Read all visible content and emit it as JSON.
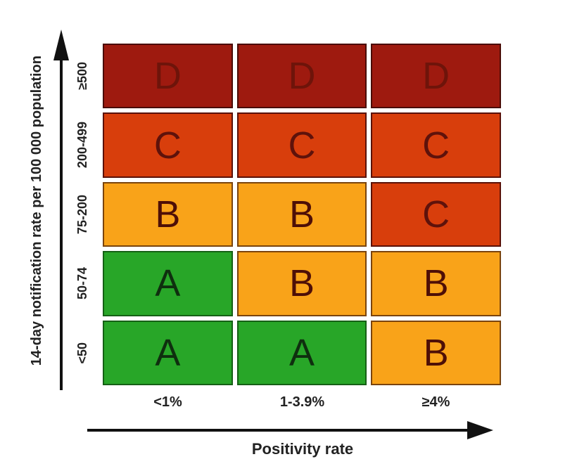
{
  "chart_data": {
    "type": "heatmap",
    "title": "",
    "xlabel": "Positivity rate",
    "ylabel": "14-day notification rate per 100 000 population",
    "x_categories": [
      "<1%",
      "1-3.9%",
      "≥4%"
    ],
    "y_categories": [
      "≥500",
      "200-499",
      "75-200",
      "50-74",
      "<50"
    ],
    "rows": [
      {
        "y_label": "≥500",
        "cells": [
          {
            "grade": "D",
            "label": "D"
          },
          {
            "grade": "D",
            "label": "D"
          },
          {
            "grade": "D",
            "label": "D"
          }
        ]
      },
      {
        "y_label": "200-499",
        "cells": [
          {
            "grade": "C",
            "label": "C"
          },
          {
            "grade": "C",
            "label": "C"
          },
          {
            "grade": "C",
            "label": "C"
          }
        ]
      },
      {
        "y_label": "75-200",
        "cells": [
          {
            "grade": "B",
            "label": "B"
          },
          {
            "grade": "B",
            "label": "B"
          },
          {
            "grade": "C",
            "label": "C"
          }
        ]
      },
      {
        "y_label": "50-74",
        "cells": [
          {
            "grade": "A",
            "label": "A"
          },
          {
            "grade": "B",
            "label": "B"
          },
          {
            "grade": "B",
            "label": "B"
          }
        ]
      },
      {
        "y_label": "<50",
        "cells": [
          {
            "grade": "A",
            "label": "A"
          },
          {
            "grade": "A",
            "label": "A"
          },
          {
            "grade": "B",
            "label": "B"
          }
        ]
      }
    ],
    "grade_colors": {
      "A": {
        "fill": "#28A628",
        "border": "#156015",
        "text": "#0F2F0F"
      },
      "B": {
        "fill": "#F9A319",
        "border": "#7A440D",
        "text": "#4E0F07"
      },
      "C": {
        "fill": "#D83E0C",
        "border": "#5A1108",
        "text": "#5E120B"
      },
      "D": {
        "fill": "#9E1A0F",
        "border": "#4A0C06",
        "text": "#6E140A"
      }
    },
    "axis_color": "#111111",
    "legend": "none",
    "grid": "off"
  }
}
